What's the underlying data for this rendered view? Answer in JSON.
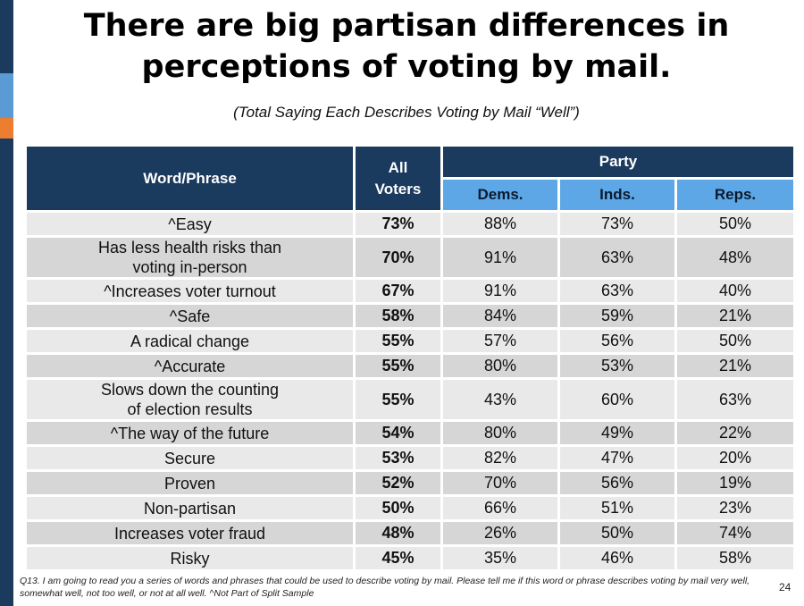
{
  "title": "There are big partisan differences in perceptions of voting by mail.",
  "subtitle": "(Total Saying Each Describes Voting by Mail “Well”)",
  "colors": {
    "header_dark": "#1a3a5e",
    "header_light": "#5ea7e6",
    "accent_blue": "#5b9bd5",
    "accent_orange": "#ed7d31",
    "row_light": "#e9e9e9",
    "row_dark": "#d6d6d6"
  },
  "table": {
    "headers": {
      "word_phrase": "Word/Phrase",
      "all_voters_line1": "All",
      "all_voters_line2": "Voters",
      "party": "Party",
      "dems": "Dems.",
      "inds": "Inds.",
      "reps": "Reps."
    },
    "rows": [
      {
        "phrase": "^Easy",
        "all": "73%",
        "dems": "88%",
        "inds": "73%",
        "reps": "50%"
      },
      {
        "phrase": "Has less health risks than\nvoting in-person",
        "all": "70%",
        "dems": "91%",
        "inds": "63%",
        "reps": "48%"
      },
      {
        "phrase": "^Increases voter turnout",
        "all": "67%",
        "dems": "91%",
        "inds": "63%",
        "reps": "40%"
      },
      {
        "phrase": "^Safe",
        "all": "58%",
        "dems": "84%",
        "inds": "59%",
        "reps": "21%"
      },
      {
        "phrase": "A radical change",
        "all": "55%",
        "dems": "57%",
        "inds": "56%",
        "reps": "50%"
      },
      {
        "phrase": "^Accurate",
        "all": "55%",
        "dems": "80%",
        "inds": "53%",
        "reps": "21%"
      },
      {
        "phrase": "Slows down the counting\nof election results",
        "all": "55%",
        "dems": "43%",
        "inds": "60%",
        "reps": "63%"
      },
      {
        "phrase": "^The way of the future",
        "all": "54%",
        "dems": "80%",
        "inds": "49%",
        "reps": "22%"
      },
      {
        "phrase": "Secure",
        "all": "53%",
        "dems": "82%",
        "inds": "47%",
        "reps": "20%"
      },
      {
        "phrase": "Proven",
        "all": "52%",
        "dems": "70%",
        "inds": "56%",
        "reps": "19%"
      },
      {
        "phrase": "Non-partisan",
        "all": "50%",
        "dems": "66%",
        "inds": "51%",
        "reps": "23%"
      },
      {
        "phrase": "Increases voter fraud",
        "all": "48%",
        "dems": "26%",
        "inds": "50%",
        "reps": "74%"
      },
      {
        "phrase": "Risky",
        "all": "45%",
        "dems": "35%",
        "inds": "46%",
        "reps": "58%"
      }
    ]
  },
  "footnote": "Q13. I am going to read you a series of words and phrases that could be used to describe voting by mail. Please tell me if this word or phrase describes voting by mail very well, somewhat well, not too well, or not at all well. ^Not Part of Split Sample",
  "page_number": "24"
}
